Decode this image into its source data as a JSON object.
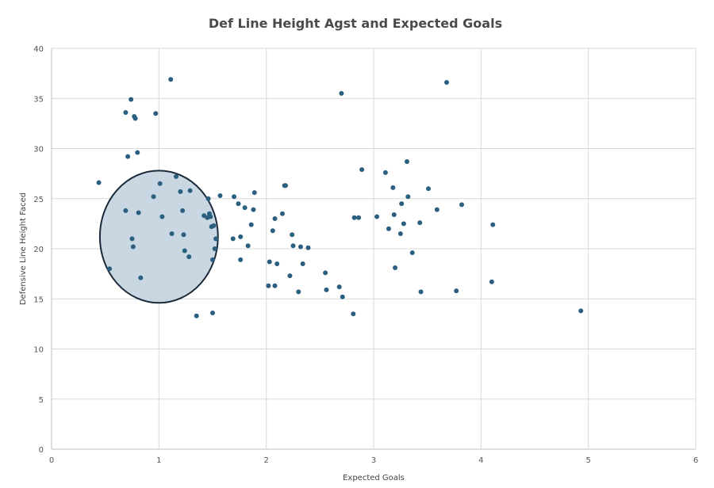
{
  "chart_data": {
    "type": "scatter",
    "title": "Def Line Height Agst and Expected Goals",
    "xlabel": "Expected Goals",
    "ylabel": "Defensive Line Height Faced",
    "xlim": [
      0,
      6
    ],
    "ylim": [
      0,
      40
    ],
    "x_ticks": [
      "0",
      "1",
      "2",
      "3",
      "4",
      "5",
      "6"
    ],
    "y_ticks": [
      "0",
      "5",
      "10",
      "15",
      "20",
      "25",
      "30",
      "35",
      "40"
    ],
    "grid": true,
    "legend": "none",
    "colors": {
      "point": "#2b5f7f",
      "ellipse_fill": "#c5d5e0",
      "ellipse_stroke": "#1a2a3a"
    },
    "highlight_ellipse": {
      "cx": 1.0,
      "cy": 21.2,
      "rx": 0.55,
      "ry": 6.6
    },
    "points": [
      [
        0.44,
        26.6
      ],
      [
        0.54,
        18.0
      ],
      [
        0.69,
        23.8
      ],
      [
        0.69,
        33.6
      ],
      [
        0.71,
        29.2
      ],
      [
        0.74,
        34.9
      ],
      [
        0.75,
        21.0
      ],
      [
        0.76,
        20.2
      ],
      [
        0.77,
        33.2
      ],
      [
        0.78,
        33.0
      ],
      [
        0.8,
        29.6
      ],
      [
        0.81,
        23.6
      ],
      [
        0.83,
        17.1
      ],
      [
        0.95,
        25.2
      ],
      [
        0.97,
        33.5
      ],
      [
        1.01,
        26.5
      ],
      [
        1.03,
        23.2
      ],
      [
        1.11,
        36.9
      ],
      [
        1.12,
        21.5
      ],
      [
        1.16,
        27.2
      ],
      [
        1.2,
        25.7
      ],
      [
        1.22,
        23.8
      ],
      [
        1.23,
        21.4
      ],
      [
        1.24,
        19.8
      ],
      [
        1.28,
        19.2
      ],
      [
        1.29,
        25.8
      ],
      [
        1.35,
        13.3
      ],
      [
        1.42,
        23.3
      ],
      [
        1.45,
        23.1
      ],
      [
        1.46,
        25.0
      ],
      [
        1.47,
        23.5
      ],
      [
        1.48,
        23.2
      ],
      [
        1.49,
        22.2
      ],
      [
        1.5,
        13.6
      ],
      [
        1.5,
        18.9
      ],
      [
        1.51,
        22.3
      ],
      [
        1.52,
        20.0
      ],
      [
        1.53,
        21.0
      ],
      [
        1.57,
        25.3
      ],
      [
        1.69,
        21.0
      ],
      [
        1.7,
        25.2
      ],
      [
        1.74,
        24.5
      ],
      [
        1.76,
        18.9
      ],
      [
        1.76,
        21.2
      ],
      [
        1.8,
        24.1
      ],
      [
        1.83,
        20.3
      ],
      [
        1.86,
        22.4
      ],
      [
        1.88,
        23.9
      ],
      [
        1.89,
        25.6
      ],
      [
        2.02,
        16.3
      ],
      [
        2.03,
        18.7
      ],
      [
        2.06,
        21.8
      ],
      [
        2.08,
        23.0
      ],
      [
        2.08,
        16.3
      ],
      [
        2.1,
        18.5
      ],
      [
        2.15,
        23.5
      ],
      [
        2.17,
        26.3
      ],
      [
        2.18,
        26.3
      ],
      [
        2.22,
        17.3
      ],
      [
        2.24,
        21.4
      ],
      [
        2.25,
        20.3
      ],
      [
        2.3,
        15.7
      ],
      [
        2.32,
        20.2
      ],
      [
        2.34,
        18.5
      ],
      [
        2.39,
        20.1
      ],
      [
        2.55,
        17.6
      ],
      [
        2.56,
        15.9
      ],
      [
        2.68,
        16.2
      ],
      [
        2.7,
        35.5
      ],
      [
        2.71,
        15.2
      ],
      [
        2.81,
        13.5
      ],
      [
        2.82,
        23.1
      ],
      [
        2.86,
        23.1
      ],
      [
        2.89,
        27.9
      ],
      [
        3.03,
        23.2
      ],
      [
        3.11,
        27.6
      ],
      [
        3.14,
        22.0
      ],
      [
        3.18,
        26.1
      ],
      [
        3.19,
        23.4
      ],
      [
        3.2,
        18.1
      ],
      [
        3.25,
        21.5
      ],
      [
        3.26,
        24.5
      ],
      [
        3.28,
        22.5
      ],
      [
        3.31,
        28.7
      ],
      [
        3.32,
        25.2
      ],
      [
        3.36,
        19.6
      ],
      [
        3.43,
        22.6
      ],
      [
        3.44,
        15.7
      ],
      [
        3.51,
        26.0
      ],
      [
        3.59,
        23.9
      ],
      [
        3.68,
        36.6
      ],
      [
        3.77,
        15.8
      ],
      [
        3.82,
        24.4
      ],
      [
        4.1,
        16.7
      ],
      [
        4.11,
        22.4
      ],
      [
        4.93,
        13.8
      ]
    ]
  }
}
